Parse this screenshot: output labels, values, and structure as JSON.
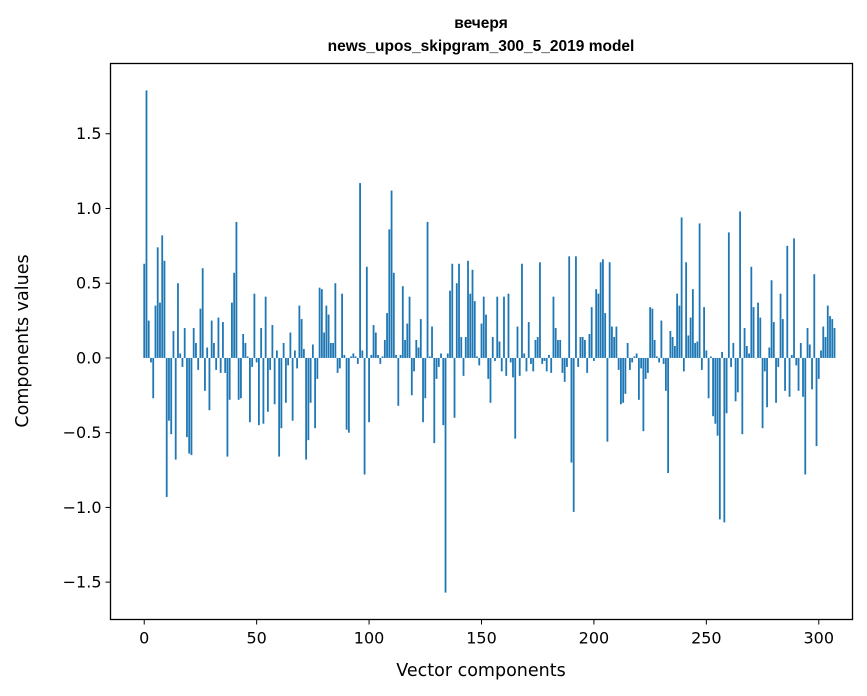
{
  "chart_data": {
    "type": "bar",
    "title": "вечеря",
    "subtitle": "news_upos_skipgram_300_5_2019 model",
    "xlabel": "Vector components",
    "ylabel": "Components values",
    "xlim": [
      -15,
      315
    ],
    "ylim": [
      -1.75,
      1.97
    ],
    "xticks": [
      0,
      50,
      100,
      150,
      200,
      250,
      300
    ],
    "xtick_labels": [
      "0",
      "50",
      "100",
      "150",
      "200",
      "250",
      "300"
    ],
    "yticks": [
      -1.5,
      -1.0,
      -0.5,
      0.0,
      0.5,
      1.0,
      1.5
    ],
    "ytick_labels": [
      "−1.5",
      "−1.0",
      "−0.5",
      "0.0",
      "0.5",
      "1.0",
      "1.5"
    ],
    "grid": false,
    "bar_color": "#1f77b4",
    "values": [
      0.63,
      1.79,
      0.25,
      -0.03,
      -0.27,
      0.35,
      0.74,
      0.37,
      0.82,
      0.65,
      -0.93,
      -0.42,
      -0.51,
      0.18,
      -0.68,
      0.5,
      0.03,
      -0.06,
      0.2,
      -0.53,
      -0.64,
      -0.65,
      0.2,
      0.1,
      -0.08,
      0.33,
      0.6,
      -0.22,
      0.07,
      -0.35,
      0.25,
      0.1,
      -0.08,
      0.27,
      -0.1,
      0.24,
      -0.1,
      -0.66,
      -0.28,
      0.37,
      0.57,
      0.91,
      -0.28,
      -0.27,
      0.16,
      0.1,
      0.01,
      -0.43,
      -0.06,
      0.43,
      -0.03,
      -0.45,
      0.2,
      -0.44,
      0.41,
      -0.36,
      -0.08,
      0.22,
      -0.31,
      0.05,
      -0.66,
      -0.47,
      0.1,
      -0.3,
      -0.05,
      0.17,
      -0.42,
      0.05,
      -0.07,
      0.35,
      0.26,
      0.06,
      -0.68,
      -0.55,
      -0.3,
      0.09,
      -0.47,
      -0.14,
      0.47,
      0.46,
      0.17,
      0.35,
      0.29,
      0.1,
      0.1,
      0.5,
      -0.1,
      -0.07,
      0.43,
      0.02,
      -0.48,
      -0.5,
      0.01,
      0.03,
      0.01,
      -0.04,
      1.17,
      0.05,
      -0.78,
      0.61,
      -0.43,
      0.02,
      0.22,
      0.17,
      0.02,
      -0.04,
      0.01,
      0.12,
      0.3,
      0.86,
      1.12,
      0.57,
      0.02,
      -0.32,
      0.02,
      0.48,
      0.12,
      0.23,
      0.41,
      -0.25,
      -0.09,
      0.12,
      0.07,
      0.26,
      -0.43,
      -0.27,
      0.91,
      0.01,
      0.21,
      -0.57,
      -0.14,
      -0.06,
      0.03,
      -0.45,
      -1.57,
      0.03,
      0.45,
      0.63,
      -0.4,
      0.5,
      0.63,
      0.14,
      -0.12,
      0.14,
      0.65,
      0.43,
      0.59,
      0.38,
      0.01,
      -0.05,
      0.23,
      0.41,
      0.29,
      -0.14,
      -0.3,
      0.14,
      -0.02,
      0.41,
      0.11,
      -0.09,
      0.41,
      -0.12,
      0.43,
      -0.03,
      -0.13,
      -0.54,
      0.21,
      -0.12,
      0.63,
      0.03,
      -0.09,
      0.24,
      -0.04,
      -0.09,
      0.12,
      0.14,
      0.64,
      -0.04,
      -0.02,
      -0.09,
      0.02,
      -0.1,
      0.41,
      0.2,
      0.12,
      0.12,
      -0.1,
      -0.16,
      -0.06,
      0.68,
      -0.7,
      -1.03,
      0.68,
      -0.06,
      0.14,
      0.14,
      0.12,
      -0.1,
      0.16,
      0.34,
      -0.02,
      0.46,
      0.43,
      0.64,
      0.66,
      0.3,
      -0.56,
      0.64,
      0.21,
      0.14,
      0.21,
      -0.08,
      -0.31,
      -0.3,
      -0.24,
      0.1,
      -0.08,
      -0.03,
      0.01,
      0.03,
      -0.28,
      -0.07,
      -0.49,
      -0.14,
      -0.1,
      0.34,
      0.33,
      0.12,
      0.01,
      -0.03,
      0.25,
      -0.04,
      -0.22,
      -0.77,
      0.18,
      0.14,
      0.08,
      0.43,
      0.35,
      0.94,
      -0.09,
      0.64,
      0.15,
      0.27,
      0.46,
      0.1,
      0.11,
      0.9,
      -0.08,
      0.34,
      0.05,
      -0.27,
      0.01,
      -0.39,
      -0.44,
      -0.52,
      -1.08,
      0.04,
      -1.1,
      -0.37,
      0.84,
      -0.06,
      0.1,
      -0.29,
      -0.23,
      0.98,
      -0.51,
      0.2,
      0.08,
      0.03,
      0.61,
      0.34,
      0.0,
      0.37,
      0.27,
      -0.47,
      -0.09,
      -0.33,
      0.07,
      0.52,
      0.24,
      -0.3,
      -0.06,
      0.43,
      0.26,
      -0.22,
      0.75,
      -0.26,
      0.02,
      0.8,
      -0.05,
      -0.22,
      0.1,
      -0.26,
      -0.78,
      0.2,
      0.09,
      -0.21,
      0.56,
      -0.59,
      -0.14,
      0.05,
      0.21,
      0.14,
      0.35,
      0.28,
      0.26,
      0.2
    ]
  }
}
